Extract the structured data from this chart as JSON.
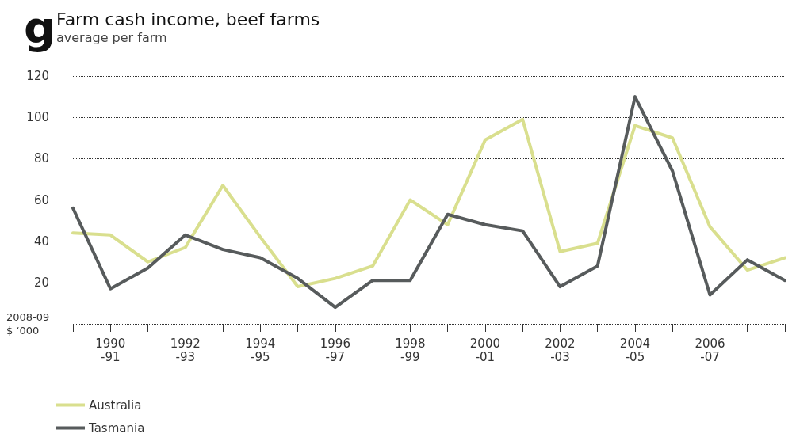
{
  "chart_data": {
    "type": "line",
    "title": "Farm cash income, beef farms",
    "subtitle": "average per farm",
    "ylabel": "2008-09\n$ ‘000",
    "annotations": [
      "g"
    ],
    "categories": [
      null,
      "1990\n-91",
      null,
      "1992\n-93",
      null,
      "1994\n-95",
      null,
      "1996\n-97",
      null,
      "1998\n-99",
      null,
      "2000\n-01",
      null,
      "2002\n-03",
      null,
      "2004\n-05",
      null,
      "2006\n-07",
      null,
      null
    ],
    "series": [
      {
        "name": "Australia",
        "color": "#d9df8e",
        "values": [
          44,
          43,
          30,
          37,
          67,
          42,
          18,
          22,
          28,
          60,
          48,
          89,
          99,
          35,
          39,
          96,
          90,
          47,
          26,
          32
        ]
      },
      {
        "name": "Tasmania",
        "color": "#575b5c",
        "values": [
          56,
          17,
          27,
          43,
          36,
          32,
          22,
          8,
          21,
          21,
          53,
          48,
          45,
          18,
          28,
          110,
          74,
          14,
          31,
          21
        ]
      }
    ],
    "ylim": [
      0,
      120
    ],
    "yticks": [
      {
        "value": 0,
        "label": null
      },
      20,
      40,
      60,
      80,
      100,
      120
    ],
    "grid": "y",
    "legend": "bottom left",
    "marker": "none",
    "line_style": "solid"
  }
}
